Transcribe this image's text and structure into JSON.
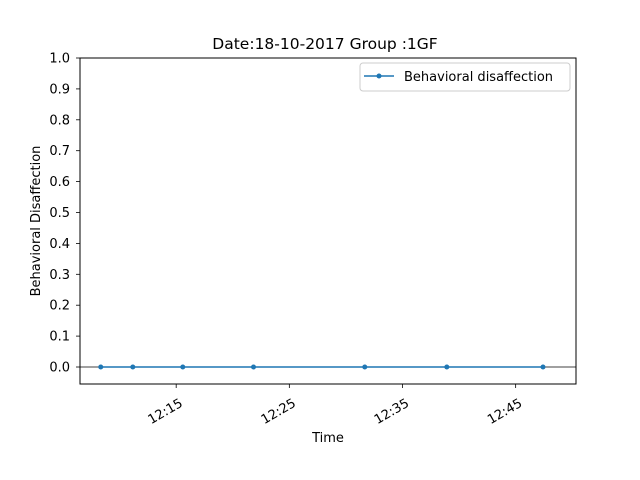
{
  "chart_data": {
    "type": "line",
    "title": "Date:18-10-2017 Group :1GF",
    "xlabel": "Time",
    "ylabel": "Behavioral Disaffection",
    "ylim": [
      -0.055,
      1.0
    ],
    "yticks": [
      "0.0",
      "0.1",
      "0.2",
      "0.3",
      "0.4",
      "0.5",
      "0.6",
      "0.7",
      "0.8",
      "0.9",
      "1.0"
    ],
    "ytick_values": [
      0.0,
      0.1,
      0.2,
      0.3,
      0.4,
      0.5,
      0.6,
      0.7,
      0.8,
      0.9,
      1.0
    ],
    "xlim_minutes": [
      "12:06:30",
      "12:50:20"
    ],
    "xticks": [
      "12:15",
      "12:25",
      "12:35",
      "12:45"
    ],
    "xtick_values": [
      "12:15",
      "12:25",
      "12:35",
      "12:45"
    ],
    "grid": false,
    "legend_position": "upper right",
    "series": [
      {
        "name": "Behavioral disaffection",
        "color": "#1f77b4",
        "x": [
          "12:08:20",
          "12:11:10",
          "12:15:35",
          "12:21:50",
          "12:31:40",
          "12:38:55",
          "12:47:25"
        ],
        "y": [
          0,
          0,
          0,
          0,
          0,
          0,
          0
        ]
      }
    ]
  }
}
